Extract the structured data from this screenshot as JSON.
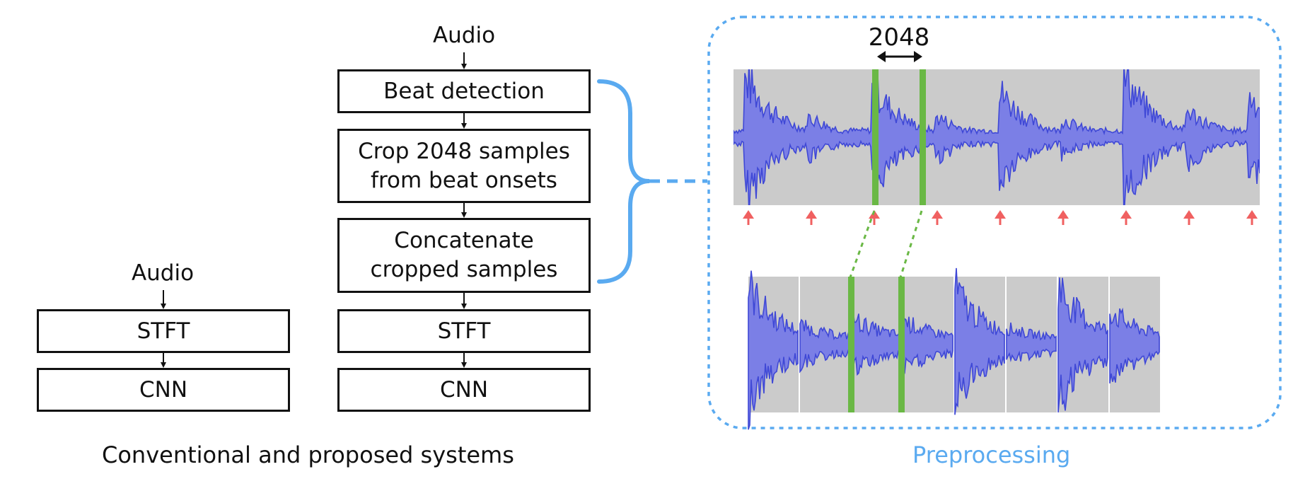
{
  "conventional": {
    "input_label": "Audio",
    "steps": [
      "STFT",
      "CNN"
    ]
  },
  "proposed": {
    "input_label": "Audio",
    "steps": [
      {
        "lines": [
          "Beat detection"
        ]
      },
      {
        "lines": [
          "Crop 2048 samples",
          "from beat onsets"
        ]
      },
      {
        "lines": [
          "Concatenate",
          "cropped samples"
        ]
      },
      {
        "lines": [
          "STFT"
        ]
      },
      {
        "lines": [
          "CNN"
        ]
      }
    ]
  },
  "systems_caption": "Conventional and proposed systems",
  "preprocessing": {
    "caption": "Preprocessing",
    "window_size_label": "2048",
    "beat_marker_count": 9,
    "segment_count": 8
  },
  "colors": {
    "accent_blue": "#5aaaf0",
    "waveform_fill": "#7b7fe6",
    "waveform_stroke": "#3f48d6",
    "panel_gray": "#cbcbcb",
    "crop_green": "#6ab845",
    "beat_arrow_red": "#f06060",
    "stroke_black": "#111111"
  }
}
